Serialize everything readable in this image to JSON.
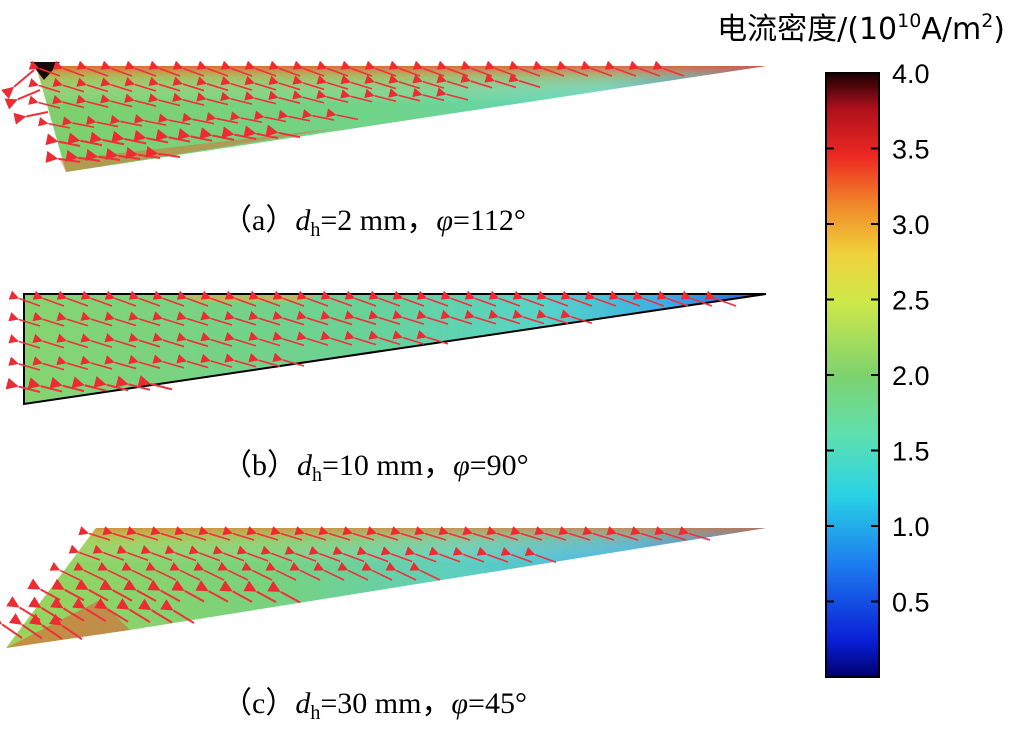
{
  "colorbar": {
    "title_prefix": "电流密度/(10",
    "title_exp1": "10",
    "title_mid": "A/m",
    "title_exp2": "2",
    "title_suffix": ")",
    "ticks": [
      4.0,
      3.5,
      3.0,
      2.5,
      2.0,
      1.5,
      1.0,
      0.5
    ],
    "tick_labels": [
      "4.0",
      "3.5",
      "3.0",
      "2.5",
      "2.0",
      "1.5",
      "1.0",
      "0.5"
    ],
    "min": 0.0,
    "max": 4.0,
    "colormap": [
      "#00007f",
      "#0000ff",
      "#007fff",
      "#00ffff",
      "#7fff7f",
      "#ffff00",
      "#ff7f00",
      "#ff0000",
      "#7f0000",
      "#000000"
    ]
  },
  "panels": [
    {
      "tag": "（a）",
      "var": "d",
      "sub": "h",
      "eq1": "=2 mm，",
      "phi": "φ",
      "eq2": "=112°"
    },
    {
      "tag": "（b）",
      "var": "d",
      "sub": "h",
      "eq1": "=10 mm，",
      "phi": "φ",
      "eq2": "=90°"
    },
    {
      "tag": "（c）",
      "var": "d",
      "sub": "h",
      "eq1": "=30 mm，",
      "phi": "φ",
      "eq2": "=45°"
    }
  ],
  "colors": {
    "arrow": "#f0303a",
    "tip_blue": "#2f6fd8"
  }
}
